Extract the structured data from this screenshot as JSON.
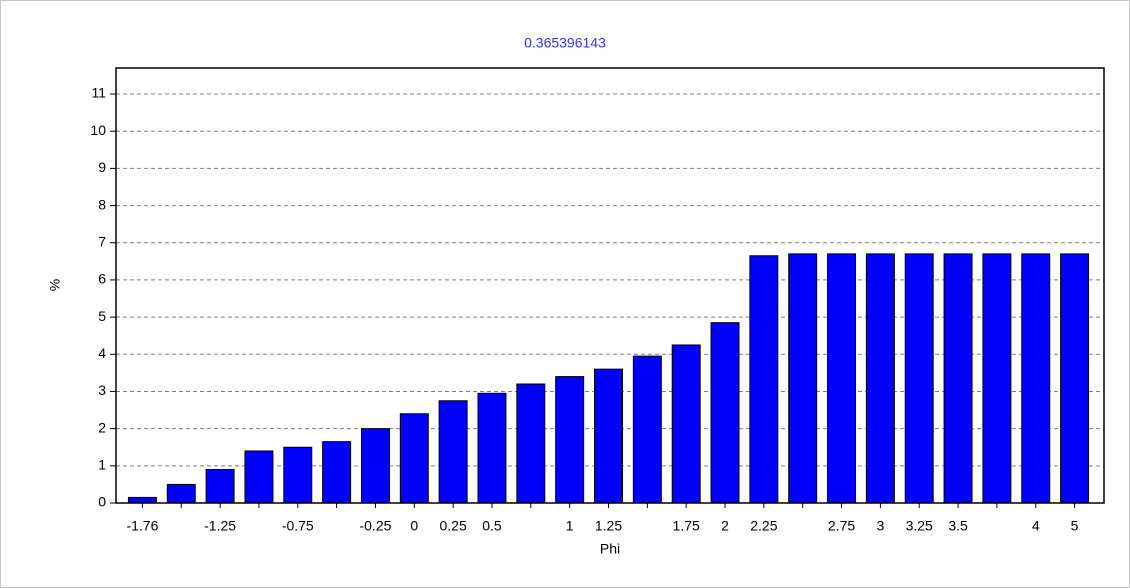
{
  "chart_data": {
    "type": "bar",
    "title": "0.365396143",
    "x_label": "Phi",
    "y_label": "%",
    "categories": [
      "-1.76",
      null,
      "-1.25",
      null,
      "-0.75",
      null,
      "-0.25",
      "0",
      "0.25",
      "0.5",
      null,
      "1",
      "1.25",
      null,
      "1.75",
      "2",
      "2.25",
      null,
      "2.75",
      "3",
      "3.25",
      "3.5",
      null,
      "4",
      "5"
    ],
    "values": [
      0.15,
      0.5,
      0.9,
      1.4,
      1.5,
      1.65,
      2.0,
      2.4,
      2.75,
      2.95,
      3.2,
      3.4,
      3.6,
      3.95,
      4.25,
      4.85,
      6.65,
      6.7,
      6.7,
      6.7,
      6.7,
      6.7,
      6.7,
      6.7,
      6.7
    ],
    "color": "#0000ff",
    "ylim": [
      0,
      11.7
    ],
    "yticks": [
      0,
      1,
      2,
      3,
      4,
      5,
      6,
      7,
      8,
      9,
      10,
      11
    ],
    "grid": true
  }
}
